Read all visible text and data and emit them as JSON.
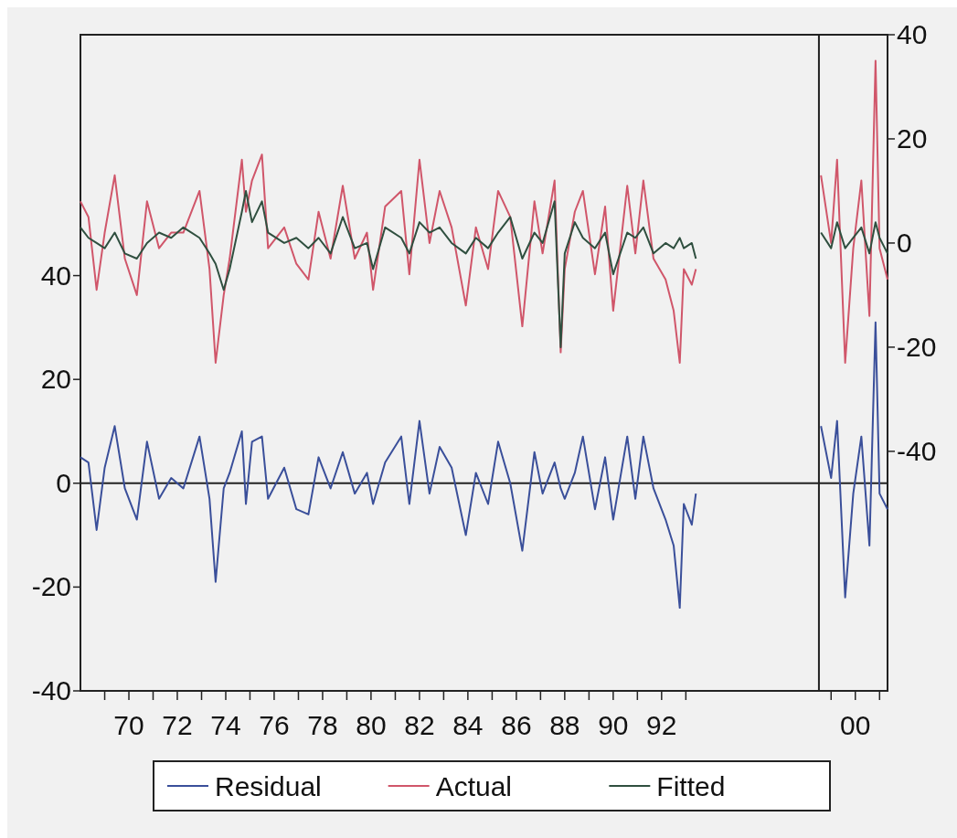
{
  "chart_data": {
    "type": "line",
    "x": [
      "1968-01",
      "1968-05",
      "1968-09",
      "1969-01",
      "1969-06",
      "1969-11",
      "1970-05",
      "1970-10",
      "1971-04",
      "1971-10",
      "1972-04",
      "1972-12",
      "1973-05",
      "1973-08",
      "1973-12",
      "1974-03",
      "1974-09",
      "1974-11",
      "1975-02",
      "1975-07",
      "1975-10",
      "1976-06",
      "1976-12",
      "1977-06",
      "1977-11",
      "1978-05",
      "1978-11",
      "1979-05",
      "1979-11",
      "1980-02",
      "1980-08",
      "1981-04",
      "1981-08",
      "1982-01",
      "1982-06",
      "1982-11",
      "1983-05",
      "1983-12",
      "1984-05",
      "1984-11",
      "1985-04",
      "1985-10",
      "1986-04",
      "1986-10",
      "1987-02",
      "1987-08",
      "1987-11",
      "1988-01",
      "1988-06",
      "1988-10",
      "1989-04",
      "1989-09",
      "1990-01",
      "1990-08",
      "1990-12",
      "1991-04",
      "1991-09",
      "1992-03",
      "1992-07",
      "1992-10",
      "1992-12",
      "1993-04",
      "1993-06",
      "1996-01",
      "1998-08",
      "1999-01",
      "1999-04",
      "1999-08",
      "1999-12",
      "2000-04",
      "2000-08",
      "2000-11",
      "2001-01",
      "2001-05"
    ],
    "series": [
      {
        "name": "Residual",
        "color": "#3a4f9a",
        "values": [
          5,
          4,
          -9,
          3,
          11,
          -1,
          -7,
          8,
          -3,
          1,
          -1,
          9,
          -3,
          -19,
          -1,
          2,
          10,
          -4,
          8,
          9,
          -3,
          3,
          -5,
          -6,
          5,
          -1,
          6,
          -2,
          2,
          -4,
          4,
          9,
          -4,
          12,
          -2,
          7,
          3,
          -10,
          2,
          -4,
          8,
          0,
          -13,
          6,
          -2,
          4,
          -1,
          -3,
          2,
          9,
          -5,
          5,
          -7,
          9,
          -3,
          9,
          -1,
          -7,
          -12,
          -24,
          -4,
          -8,
          -2,
          null,
          11,
          1,
          12,
          -22,
          -2,
          9,
          -12,
          31,
          -2,
          -5
        ]
      },
      {
        "name": "Actual",
        "color": "#d0566a",
        "axis": "y2",
        "values": [
          8,
          5,
          -9,
          2,
          13,
          -3,
          -10,
          8,
          -1,
          2,
          2,
          10,
          -5,
          -23,
          -10,
          -3,
          16,
          6,
          12,
          17,
          -1,
          3,
          -4,
          -7,
          6,
          -3,
          11,
          -3,
          2,
          -9,
          7,
          10,
          -6,
          16,
          0,
          10,
          3,
          -12,
          3,
          -5,
          10,
          5,
          -16,
          8,
          -2,
          12,
          -21,
          -5,
          6,
          10,
          -6,
          7,
          -13,
          11,
          -2,
          12,
          -3,
          -7,
          -13,
          -23,
          -5,
          -8,
          -5,
          null,
          13,
          0,
          16,
          -23,
          -1,
          12,
          -14,
          35,
          -1,
          -7
        ]
      },
      {
        "name": "Fitted",
        "color": "#2f4f3f",
        "axis": "y2",
        "values": [
          3,
          1,
          0,
          -1,
          2,
          -2,
          -3,
          0,
          2,
          1,
          3,
          1,
          -2,
          -4,
          -9,
          -5,
          6,
          10,
          4,
          8,
          2,
          0,
          1,
          -1,
          1,
          -2,
          5,
          -1,
          0,
          -5,
          3,
          1,
          -2,
          4,
          2,
          3,
          0,
          -2,
          1,
          -1,
          2,
          5,
          -3,
          2,
          0,
          8,
          -20,
          -2,
          4,
          1,
          -1,
          2,
          -6,
          2,
          1,
          3,
          -2,
          0,
          -1,
          1,
          -1,
          0,
          -3,
          null,
          2,
          -1,
          4,
          -1,
          1,
          3,
          -2,
          4,
          1,
          -2
        ]
      }
    ],
    "xlim": [
      "1968-01",
      "2001-05"
    ],
    "xticks": [
      {
        "value": "1969",
        "label": null
      },
      {
        "value": "1970",
        "label": "70"
      },
      {
        "value": "1971",
        "label": null
      },
      {
        "value": "1972",
        "label": "72"
      },
      {
        "value": "1973",
        "label": null
      },
      {
        "value": "1974",
        "label": "74"
      },
      {
        "value": "1975",
        "label": null
      },
      {
        "value": "1976",
        "label": "76"
      },
      {
        "value": "1977",
        "label": null
      },
      {
        "value": "1978",
        "label": "78"
      },
      {
        "value": "1979",
        "label": null
      },
      {
        "value": "1980",
        "label": "80"
      },
      {
        "value": "1981",
        "label": null
      },
      {
        "value": "1982",
        "label": "82"
      },
      {
        "value": "1983",
        "label": null
      },
      {
        "value": "1984",
        "label": "84"
      },
      {
        "value": "1985",
        "label": null
      },
      {
        "value": "1986",
        "label": "86"
      },
      {
        "value": "1987",
        "label": null
      },
      {
        "value": "1988",
        "label": "88"
      },
      {
        "value": "1989",
        "label": null
      },
      {
        "value": "1990",
        "label": "90"
      },
      {
        "value": "1991",
        "label": null
      },
      {
        "value": "1992",
        "label": "92"
      },
      {
        "value": "1993",
        "label": null
      },
      {
        "value": "1999",
        "label": null
      },
      {
        "value": "2000",
        "label": "00"
      },
      {
        "value": "2001",
        "label": null
      }
    ],
    "ylim": [
      -40,
      86.4
    ],
    "yticks": [
      -40,
      -20,
      0,
      20,
      40
    ],
    "y2lim": [
      -86,
      40
    ],
    "y2ticks": [
      -40,
      -20,
      0,
      20,
      40
    ],
    "ref_lines": [
      {
        "axis": "y",
        "value": 0,
        "color": "#222222"
      },
      {
        "axis": "x",
        "value": "1998-07",
        "color": "#222222"
      }
    ],
    "legend": "bottom"
  }
}
